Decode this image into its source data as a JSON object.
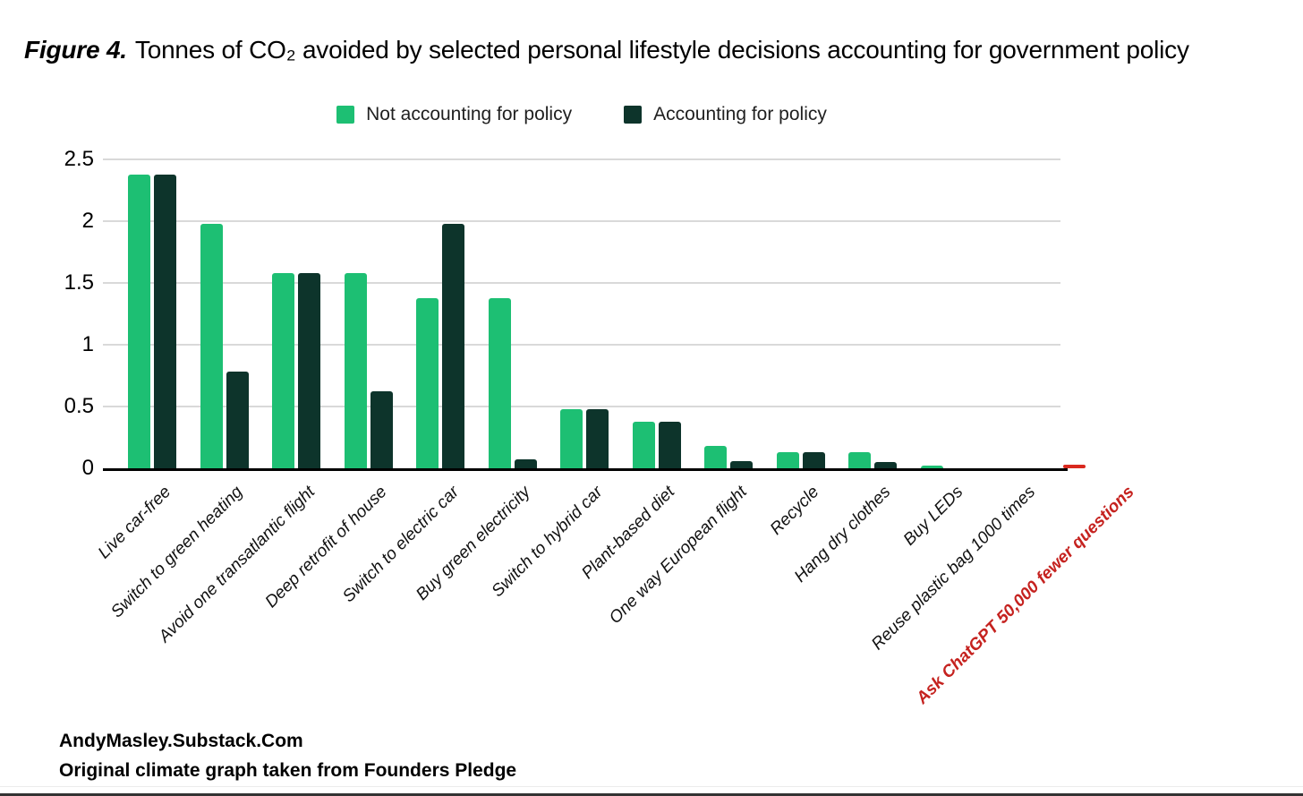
{
  "figure": {
    "title_prefix": "Figure 4.",
    "title_rest": "Tonnes of CO₂ avoided by selected personal lifestyle decisions accounting for government policy",
    "footer_line1": "AndyMasley.Substack.Com",
    "footer_line2": "Original climate graph taken from Founders Pledge"
  },
  "legend": [
    {
      "label": "Not accounting for policy",
      "color": "#1dbf73"
    },
    {
      "label": "Accounting for policy",
      "color": "#0d342b"
    }
  ],
  "chart_data": {
    "type": "bar",
    "title": "Figure 4. Tonnes of CO₂ avoided by selected personal lifestyle decisions accounting for government policy",
    "xlabel": "",
    "ylabel": "",
    "ylim": [
      0,
      2.5
    ],
    "yticks": [
      0,
      0.5,
      1,
      1.5,
      2,
      2.5
    ],
    "grid": true,
    "legend_position": "top",
    "categories": [
      "Live car-free",
      "Switch to green heating",
      "Avoid one transatlantic flight",
      "Deep retrofit of house",
      "Switch to electric car",
      "Buy green electricity",
      "Switch to hybrid car",
      "Plant-based diet",
      "One way European flight",
      "Recycle",
      "Hang dry clothes",
      "Buy LEDs",
      "Reuse plastic bag 1000 times",
      "Ask ChatGPT 50,000 fewer questions"
    ],
    "series": [
      {
        "name": "Not accounting for policy",
        "color": "#1dbf73",
        "values": [
          2.38,
          1.98,
          1.58,
          1.58,
          1.38,
          1.38,
          0.48,
          0.38,
          0.18,
          0.13,
          0.13,
          0.02,
          0,
          0
        ]
      },
      {
        "name": "Accounting for policy",
        "color": "#0d342b",
        "values": [
          2.38,
          0.78,
          1.58,
          0.62,
          1.98,
          0.07,
          0.48,
          0.38,
          0.06,
          0.13,
          0.05,
          0,
          0,
          0
        ]
      }
    ],
    "highlight": {
      "category": "Ask ChatGPT 50,000 fewer questions",
      "value": 0.03,
      "bar_color": "#d9291f",
      "label_color": "#c5221f"
    }
  }
}
